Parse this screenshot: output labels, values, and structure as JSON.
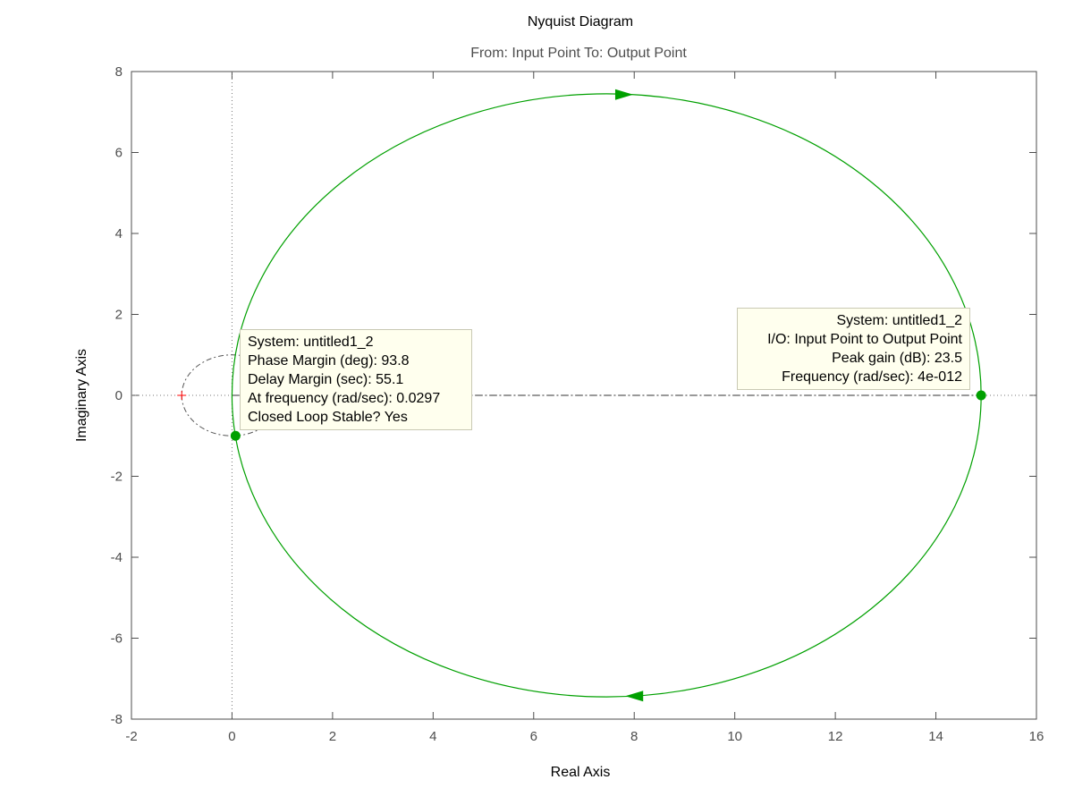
{
  "chart_data": {
    "type": "line",
    "title": "Nyquist Diagram",
    "subtitle": "From: Input Point  To: Output Point",
    "xlabel": "Real Axis",
    "ylabel": "Imaginary Axis",
    "xlim": [
      -2,
      16
    ],
    "ylim": [
      -8,
      8
    ],
    "xticks": [
      "-2",
      "0",
      "2",
      "4",
      "6",
      "8",
      "10",
      "12",
      "14",
      "16"
    ],
    "yticks": [
      "8",
      "6",
      "4",
      "2",
      "0",
      "-2",
      "-4",
      "-6",
      "-8"
    ],
    "grid": false,
    "curve": {
      "shape": "circle",
      "center": [
        7.45,
        0
      ],
      "radius": 7.45,
      "color": "#00a000"
    },
    "unit_circle": {
      "center": [
        0,
        0
      ],
      "radius": 1,
      "color": "#555555"
    },
    "critical_point": {
      "x": -1,
      "y": 0,
      "color": "#ff0000"
    },
    "arrows": [
      {
        "x": 7.8,
        "y": 7.43,
        "direction": "right"
      },
      {
        "x": 8.0,
        "y": -7.43,
        "direction": "left"
      }
    ],
    "markers": [
      {
        "name": "phase-margin-point",
        "x": 0.07,
        "y": -1.0
      },
      {
        "name": "peak-gain-point",
        "x": 14.9,
        "y": 0
      }
    ],
    "colors": {
      "curve": "#00a000",
      "axes": "#4d4d4d",
      "annotation_bg": "#ffffee"
    }
  },
  "datatip_phase": {
    "system": "System: untitled1_2",
    "phase_margin": "Phase Margin (deg): 93.8",
    "delay_margin": "Delay Margin (sec): 55.1",
    "frequency": "At frequency (rad/sec): 0.0297",
    "stable": "Closed Loop Stable? Yes"
  },
  "datatip_peak": {
    "system": "System: untitled1_2",
    "io": "I/O: Input Point to Output Point",
    "peak_gain": "Peak gain (dB): 23.5",
    "frequency": "Frequency (rad/sec): 4e-012"
  }
}
